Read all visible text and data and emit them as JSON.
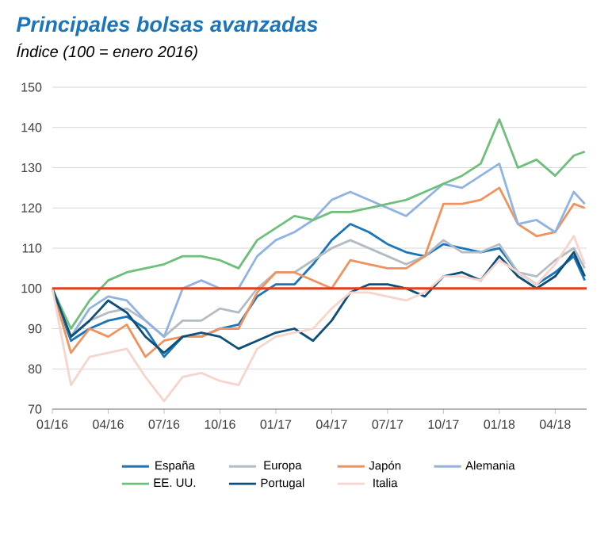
{
  "chart_data": {
    "type": "line",
    "title": "Principales bolsas avanzadas",
    "subtitle": "Índice (100 = enero 2016)",
    "x": [
      "2016-01-01",
      "2016-02-01",
      "2016-03-01",
      "2016-04-01",
      "2016-05-01",
      "2016-06-01",
      "2016-07-01",
      "2016-08-01",
      "2016-09-01",
      "2016-10-01",
      "2016-11-01",
      "2016-12-01",
      "2017-01-01",
      "2017-02-01",
      "2017-03-01",
      "2017-04-01",
      "2017-05-01",
      "2017-06-01",
      "2017-07-01",
      "2017-08-01",
      "2017-09-01",
      "2017-10-01",
      "2017-11-01",
      "2017-12-01",
      "2018-01-01",
      "2018-02-01",
      "2018-03-01",
      "2018-04-01",
      "2018-05-01",
      "2018-05-19"
    ],
    "series": [
      {
        "name": "España",
        "color": "#1a75bb",
        "values": [
          100,
          87,
          90,
          92,
          93,
          90,
          83,
          88,
          88,
          90,
          91,
          98,
          101,
          101,
          106,
          112,
          116,
          114,
          111,
          109,
          108,
          111,
          110,
          109,
          110,
          104,
          101,
          104,
          108,
          102
        ]
      },
      {
        "name": "Europa",
        "color": "#b3bcc3",
        "values": [
          100,
          88,
          92,
          94,
          95,
          92,
          88,
          92,
          92,
          95,
          94,
          100,
          104,
          104,
          107,
          110,
          112,
          110,
          108,
          106,
          108,
          112,
          109,
          109,
          111,
          104,
          103,
          107,
          110,
          105
        ]
      },
      {
        "name": "Japón",
        "color": "#f0925e",
        "values": [
          100,
          84,
          90,
          88,
          91,
          83,
          87,
          88,
          88,
          90,
          90,
          99,
          104,
          104,
          102,
          100,
          107,
          106,
          105,
          105,
          108,
          121,
          121,
          122,
          125,
          116,
          113,
          114,
          121,
          120
        ]
      },
      {
        "name": "Alemania",
        "color": "#8fb4e3",
        "values": [
          100,
          88,
          95,
          98,
          97,
          92,
          88,
          100,
          102,
          100,
          100,
          108,
          112,
          114,
          117,
          122,
          124,
          122,
          120,
          118,
          122,
          126,
          125,
          128,
          131,
          116,
          117,
          114,
          124,
          121
        ]
      },
      {
        "name": "EE. UU.",
        "color": "#6dbf7a",
        "values": [
          100,
          90,
          97,
          102,
          104,
          105,
          106,
          108,
          108,
          107,
          105,
          112,
          115,
          118,
          117,
          119,
          119,
          120,
          121,
          122,
          124,
          126,
          128,
          131,
          142,
          130,
          132,
          128,
          133,
          134
        ]
      },
      {
        "name": "Portugal",
        "color": "#0b4f7a",
        "values": [
          100,
          88,
          92,
          97,
          94,
          88,
          84,
          88,
          89,
          88,
          85,
          87,
          89,
          90,
          87,
          92,
          99,
          101,
          101,
          100,
          98,
          103,
          104,
          102,
          108,
          103,
          100,
          103,
          109,
          103
        ]
      },
      {
        "name": "Italia",
        "color": "#f7d4cc",
        "values": [
          100,
          76,
          83,
          84,
          85,
          78,
          72,
          78,
          79,
          77,
          76,
          85,
          88,
          89,
          90,
          95,
          99,
          99,
          98,
          97,
          99,
          103,
          103,
          102,
          107,
          104,
          101,
          106,
          113,
          106
        ]
      }
    ],
    "xlim": [
      "2016-01-01",
      "2018-05-22"
    ],
    "ylim": [
      70,
      150
    ],
    "xticks": [
      {
        "value": "2016-01",
        "label": "01/16"
      },
      {
        "value": "2016-04",
        "label": "04/16"
      },
      {
        "value": "2016-07",
        "label": "07/16"
      },
      {
        "value": "2016-10",
        "label": "10/16"
      },
      {
        "value": "2017-01",
        "label": "01/17"
      },
      {
        "value": "2017-04",
        "label": "04/17"
      },
      {
        "value": "2017-07",
        "label": "07/17"
      },
      {
        "value": "2017-10",
        "label": "10/17"
      },
      {
        "value": "2018-01",
        "label": "01/18"
      },
      {
        "value": "2018-04",
        "label": "04/18"
      }
    ],
    "yticks": [
      70,
      80,
      90,
      100,
      110,
      120,
      130,
      140,
      150
    ],
    "ref_lines": [
      {
        "axis": "y",
        "value": 100,
        "color": "#e2401c"
      }
    ],
    "grid": "y",
    "legend": "bottom"
  }
}
